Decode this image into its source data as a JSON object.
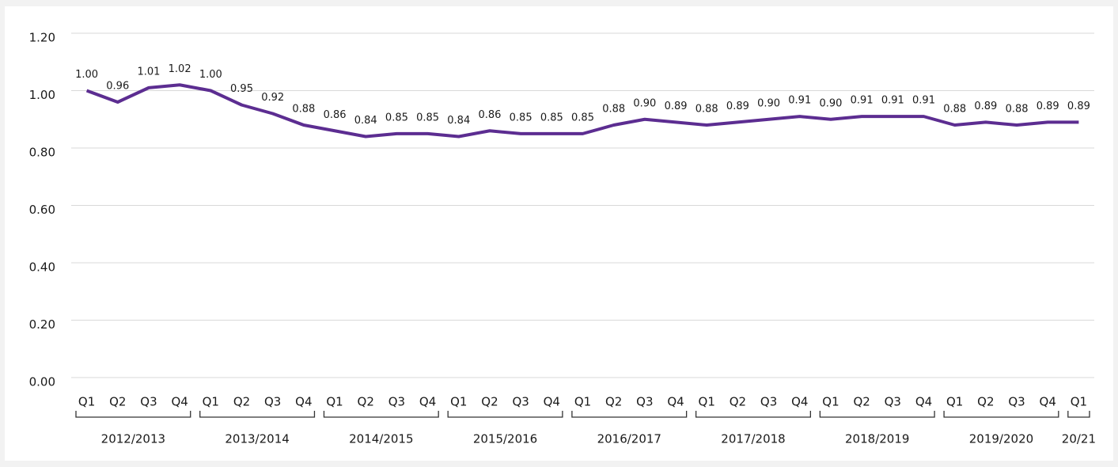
{
  "chart_data": {
    "type": "line",
    "groups": [
      {
        "name": "2012/2013",
        "categories": [
          "Q1",
          "Q2",
          "Q3",
          "Q4"
        ]
      },
      {
        "name": "2013/2014",
        "categories": [
          "Q1",
          "Q2",
          "Q3",
          "Q4"
        ]
      },
      {
        "name": "2014/2015",
        "categories": [
          "Q1",
          "Q2",
          "Q3",
          "Q4"
        ]
      },
      {
        "name": "2015/2016",
        "categories": [
          "Q1",
          "Q2",
          "Q3",
          "Q4"
        ]
      },
      {
        "name": "2016/2017",
        "categories": [
          "Q1",
          "Q2",
          "Q3",
          "Q4"
        ]
      },
      {
        "name": "2017/2018",
        "categories": [
          "Q1",
          "Q2",
          "Q3",
          "Q4"
        ]
      },
      {
        "name": "2018/2019",
        "categories": [
          "Q1",
          "Q2",
          "Q3",
          "Q4"
        ]
      },
      {
        "name": "2019/2020",
        "categories": [
          "Q1",
          "Q2",
          "Q3",
          "Q4"
        ]
      },
      {
        "name": "20/21",
        "categories": [
          "Q1"
        ]
      }
    ],
    "values": [
      1,
      0.96,
      1.01,
      1.02,
      1,
      0.95,
      0.92,
      0.88,
      0.86,
      0.84,
      0.85,
      0.85,
      0.84,
      0.86,
      0.85,
      0.85,
      0.85,
      0.88,
      0.9,
      0.89,
      0.88,
      0.89,
      0.9,
      0.91,
      0.9,
      0.91,
      0.91,
      0.91,
      0.88,
      0.89,
      0.88,
      0.89,
      0.89
    ],
    "value_labels": [
      "1.00",
      "0.96",
      "1.01",
      "1.02",
      "1.00",
      "0.95",
      "0.92",
      "0.88",
      "0.86",
      "0.84",
      "0.85",
      "0.85",
      "0.84",
      "0.86",
      "0.85",
      "0.85",
      "0.85",
      "0.88",
      "0.90",
      "0.89",
      "0.88",
      "0.89",
      "0.90",
      "0.91",
      "0.90",
      "0.91",
      "0.91",
      "0.91",
      "0.88",
      "0.89",
      "0.88",
      "0.89",
      "0.89"
    ],
    "color": "#5c2d91",
    "ylim": [
      0,
      1.2
    ],
    "yticks": [
      {
        "value": 0,
        "label": "0.00"
      },
      {
        "value": 0.2,
        "label": "0.20"
      },
      {
        "value": 0.4,
        "label": "0.40"
      },
      {
        "value": 0.6,
        "label": "0.60"
      },
      {
        "value": 0.8,
        "label": "0.80"
      },
      {
        "value": 1,
        "label": "1.00"
      },
      {
        "value": 1.2,
        "label": "1.20"
      }
    ],
    "grid": true
  }
}
